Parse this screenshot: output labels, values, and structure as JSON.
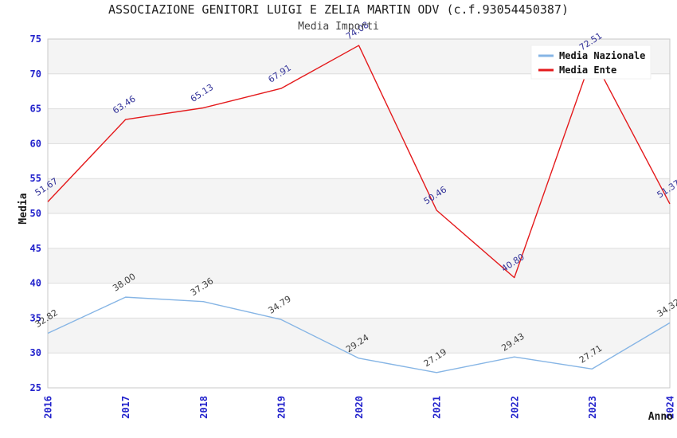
{
  "header": {
    "title": "ASSOCIAZIONE GENITORI LUIGI E ZELIA MARTIN ODV (c.f.93054450387)",
    "subtitle": "Media Importi"
  },
  "chart_data": {
    "type": "line",
    "x": [
      "2016",
      "2017",
      "2018",
      "2019",
      "2020",
      "2021",
      "2022",
      "2023",
      "2024"
    ],
    "xlabel": "Anno",
    "ylabel": "Media",
    "ylim": [
      25,
      75
    ],
    "ytick_step": 5,
    "yticks": [
      25,
      30,
      35,
      40,
      45,
      50,
      55,
      60,
      65,
      70,
      75
    ],
    "grid": "horizontal gridlines with alternating gray bands",
    "legend_position": "top-right",
    "series": [
      {
        "name": "Media Nazionale",
        "color": "#86b5e5",
        "label_color": "#404040",
        "values": [
          32.82,
          38.0,
          37.36,
          34.79,
          29.24,
          27.19,
          29.43,
          27.71,
          34.32
        ]
      },
      {
        "name": "Media Ente",
        "color": "#e41a1c",
        "label_color": "#333399",
        "values": [
          51.67,
          63.46,
          65.13,
          67.91,
          74.08,
          50.46,
          40.8,
          72.51,
          51.37
        ]
      }
    ],
    "colors": {
      "tick_label": "#2222cc",
      "band": "#f4f4f4",
      "grid_line": "#dddddd",
      "plot_border": "#c9c9c9",
      "background": "#ffffff",
      "legend_background": "#ffffff"
    }
  }
}
